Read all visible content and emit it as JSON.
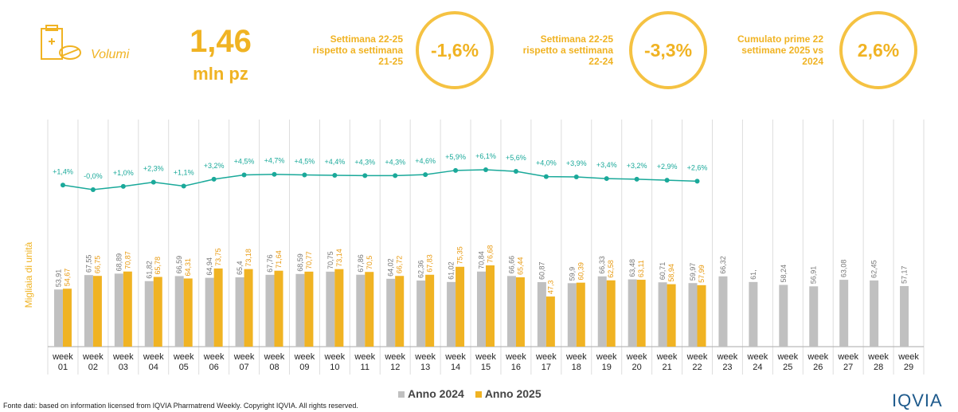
{
  "header": {
    "icon_label": "Volumi",
    "big_value": "1,46",
    "big_unit": "mln pz",
    "kpis": [
      {
        "text": "Settimana 22-25 rispetto a settimana 21-25",
        "value": "-1,6%"
      },
      {
        "text": "Settimana 22-25 rispetto a settimana 22-24",
        "value": "-3,3%"
      },
      {
        "text": "Cumulato prime 22 settimane 2025 vs 2024",
        "value": "2,6%"
      }
    ]
  },
  "chart_data": {
    "type": "bar",
    "y_label": "Migliaia di unità",
    "categories": [
      "week 01",
      "week 02",
      "week 03",
      "week 04",
      "week 05",
      "week 06",
      "week 07",
      "week 08",
      "week 09",
      "week 10",
      "week 11",
      "week 12",
      "week 13",
      "week 14",
      "week 15",
      "week 16",
      "week 17",
      "week 18",
      "week 19",
      "week 20",
      "week 21",
      "week 22",
      "week 23",
      "week 24",
      "week 25",
      "week 26",
      "week 27",
      "week 28",
      "week 29"
    ],
    "series": [
      {
        "name": "Anno 2024",
        "color": "#c0c0c0",
        "values": [
          53.91,
          67.55,
          68.89,
          61.82,
          66.59,
          64.94,
          65.4,
          67.76,
          68.59,
          70.75,
          67.86,
          64.02,
          62.36,
          61.02,
          70.84,
          66.66,
          60.87,
          59.9,
          66.33,
          63.48,
          60.71,
          59.97,
          66.32,
          61,
          58.24,
          56.91,
          63.08,
          62.45,
          57.17
        ],
        "value_labels": [
          "53,91",
          "67,55",
          "68,89",
          "61,82",
          "66,59",
          "64,94",
          "65,4",
          "67,76",
          "68,59",
          "70,75",
          "67,86",
          "64,02",
          "62,36",
          "61,02",
          "70,84",
          "66,66",
          "60,87",
          "59,9",
          "66,33",
          "63,48",
          "60,71",
          "59,97",
          "66,32",
          "61,",
          "58,24",
          "56,91",
          "63,08",
          "62,45",
          "57,17"
        ]
      },
      {
        "name": "Anno 2025",
        "color": "#f0b323",
        "values": [
          54.67,
          66.75,
          70.87,
          65.78,
          64.31,
          73.75,
          73.18,
          71.64,
          70.77,
          73.14,
          70.5,
          66.72,
          67.83,
          75.35,
          76.68,
          65.44,
          47.3,
          60.39,
          62.58,
          63.11,
          58.94,
          57.99,
          null,
          null,
          null,
          null,
          null,
          null,
          null
        ],
        "value_labels": [
          "54,67",
          "66,75",
          "70,87",
          "65,78",
          "64,31",
          "73,75",
          "73,18",
          "71,64",
          "70,77",
          "73,14",
          "70,5",
          "66,72",
          "67,83",
          "75,35",
          "76,68",
          "65,44",
          "47,3",
          "60,39",
          "62,58",
          "63,11",
          "58,94",
          "57,99",
          null,
          null,
          null,
          null,
          null,
          null,
          null
        ]
      },
      {
        "name": null,
        "type": "line",
        "color": "#1aa99a",
        "values": [
          1.4,
          -0.0,
          1.0,
          2.3,
          1.1,
          3.2,
          4.5,
          4.7,
          4.5,
          4.4,
          4.3,
          4.3,
          4.6,
          5.9,
          6.1,
          5.6,
          4.0,
          3.9,
          3.4,
          3.2,
          2.9,
          2.6,
          null,
          null,
          null,
          null,
          null,
          null,
          null
        ],
        "value_labels": [
          "+1,4%",
          "-0,0%",
          "+1,0%",
          "+2,3%",
          "+1,1%",
          "+3,2%",
          "+4,5%",
          "+4,7%",
          "+4,5%",
          "+4,4%",
          "+4,3%",
          "+4,3%",
          "+4,6%",
          "+5,9%",
          "+6,1%",
          "+5,6%",
          "+4,0%",
          "+3,9%",
          "+3,4%",
          "+3,2%",
          "+2,9%",
          "+2,6%",
          null,
          null,
          null,
          null,
          null,
          null,
          null
        ]
      }
    ]
  },
  "footer": {
    "source": "Fonte dati: based on information licensed from IQVIA Pharmatrend Weekly. Copyright IQVIA. All rights reserved.",
    "logo": "IQVIA"
  }
}
